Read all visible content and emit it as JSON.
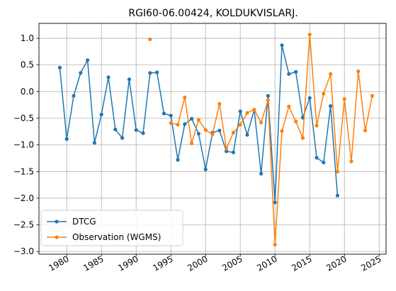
{
  "chart_data": {
    "type": "line",
    "title": "RGI60-06.00424, KOLDUKVISLARJ.",
    "xlabel": "",
    "ylabel": "",
    "xlim": [
      1976,
      2026
    ],
    "ylim": [
      -3.05,
      1.28
    ],
    "grid": true,
    "legend_position": "lower-left",
    "x_ticks": [
      1980,
      1985,
      1990,
      1995,
      2000,
      2005,
      2010,
      2015,
      2020,
      2025
    ],
    "x_tick_labels": [
      "1980",
      "1985",
      "1990",
      "1995",
      "2000",
      "2005",
      "2010",
      "2015",
      "2020",
      "2025"
    ],
    "y_ticks": [
      1.0,
      0.5,
      0.0,
      -0.5,
      -1.0,
      -1.5,
      -2.0,
      -2.5,
      -3.0
    ],
    "y_tick_labels": [
      "1.0",
      "0.5",
      "0.0",
      "−0.5",
      "−1.0",
      "−1.5",
      "−2.0",
      "−2.5",
      "−3.0"
    ],
    "series": [
      {
        "name": "DTCG",
        "color": "#1f77b4",
        "x": [
          1979,
          1980,
          1981,
          1982,
          1983,
          1984,
          1985,
          1986,
          1987,
          1988,
          1989,
          1990,
          1991,
          1992,
          1993,
          1994,
          1995,
          1996,
          1997,
          1998,
          1999,
          2000,
          2001,
          2002,
          2003,
          2004,
          2005,
          2006,
          2007,
          2008,
          2009,
          2010,
          2011,
          2012,
          2013,
          2014,
          2015,
          2016,
          2017,
          2018,
          2019
        ],
        "y": [
          0.45,
          -0.89,
          -0.08,
          0.35,
          0.59,
          -0.96,
          -0.43,
          0.27,
          -0.71,
          -0.87,
          0.23,
          -0.72,
          -0.78,
          0.35,
          0.36,
          -0.41,
          -0.45,
          -1.28,
          -0.61,
          -0.51,
          -0.79,
          -1.46,
          -0.77,
          -0.73,
          -1.12,
          -1.14,
          -0.37,
          -0.81,
          -0.34,
          -1.54,
          -0.08,
          -2.08,
          0.87,
          0.33,
          0.37,
          -0.49,
          -0.12,
          -1.24,
          -1.33,
          -0.27,
          -1.95
        ]
      },
      {
        "name": "Observation (WGMS)",
        "color": "#ff7f0e",
        "segments": [
          {
            "x": [
              1992
            ],
            "y": [
              0.98
            ]
          },
          {
            "x": [
              1995,
              1996,
              1997,
              1998,
              1999,
              2000,
              2001,
              2002,
              2003,
              2004,
              2005,
              2006,
              2007,
              2008,
              2009,
              2010,
              2011,
              2012,
              2013,
              2014,
              2015,
              2016,
              2017,
              2018,
              2019,
              2020,
              2021,
              2022,
              2023,
              2024
            ],
            "y": [
              -0.59,
              -0.62,
              -0.11,
              -0.97,
              -0.53,
              -0.72,
              -0.8,
              -0.23,
              -1.07,
              -0.77,
              -0.62,
              -0.4,
              -0.34,
              -0.58,
              -0.16,
              -2.87,
              -0.74,
              -0.28,
              -0.56,
              -0.87,
              1.07,
              -0.64,
              -0.04,
              0.33,
              -1.5,
              -0.14,
              -1.31,
              0.38,
              -0.73,
              -0.08
            ]
          }
        ]
      }
    ]
  }
}
